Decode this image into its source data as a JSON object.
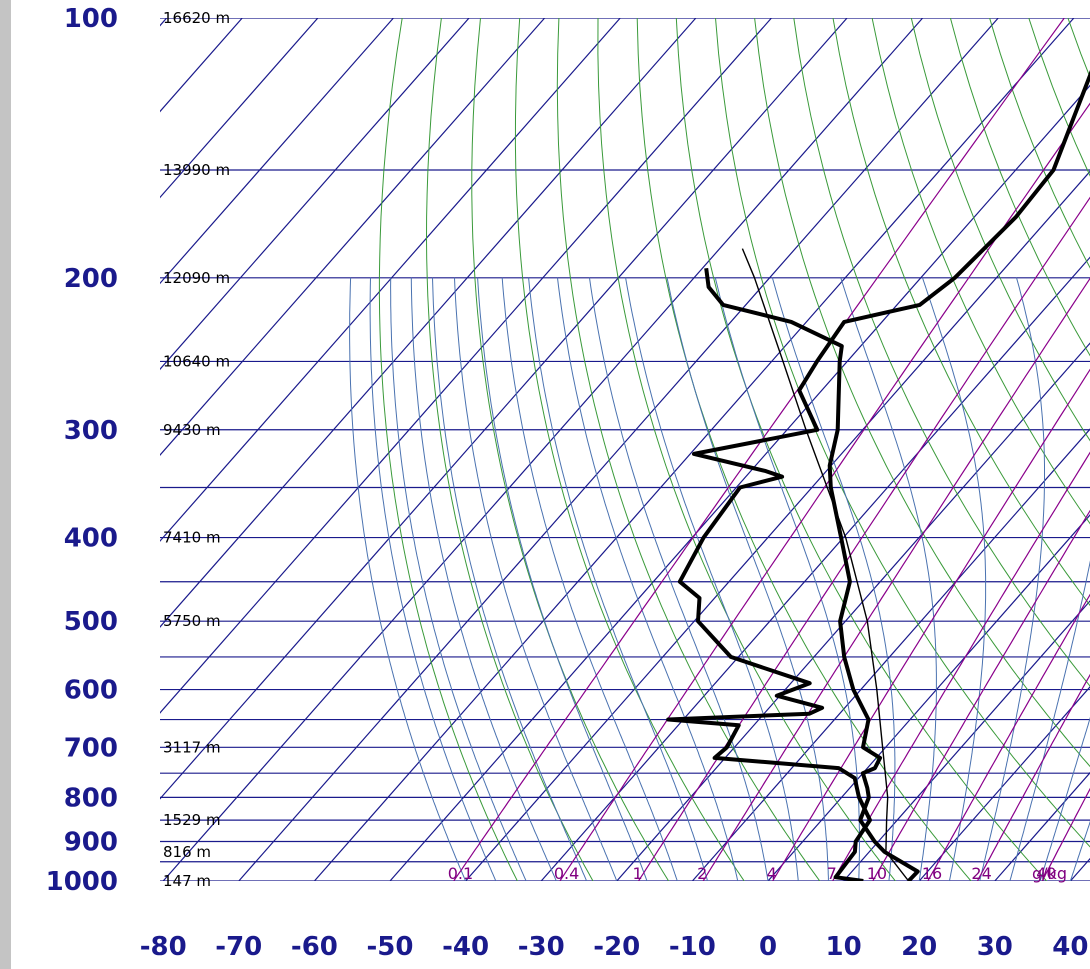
{
  "chart_data": {
    "type": "line",
    "title": "",
    "xlabel": "",
    "ylabel": "",
    "x_axis": {
      "unit": "°C",
      "ticks": [
        "-80",
        "-70",
        "-60",
        "-50",
        "-40",
        "-30",
        "-20",
        "-10",
        "0",
        "10",
        "20",
        "30",
        "40"
      ],
      "range": [
        -80,
        40
      ]
    },
    "y_axis": {
      "unit": "hPa",
      "scale": "log",
      "ticks": [
        "100",
        "200",
        "300",
        "400",
        "500",
        "600",
        "700",
        "800",
        "900",
        "1000"
      ],
      "range": [
        100,
        1000
      ]
    },
    "height_labels": [
      {
        "p": 100,
        "text": "16620 m"
      },
      {
        "p": 150,
        "text": "13990 m"
      },
      {
        "p": 200,
        "text": "12090 m"
      },
      {
        "p": 250,
        "text": "10640 m"
      },
      {
        "p": 300,
        "text": "9430 m"
      },
      {
        "p": 400,
        "text": "7410 m"
      },
      {
        "p": 500,
        "text": "5750 m"
      },
      {
        "p": 700,
        "text": "3117 m"
      },
      {
        "p": 850,
        "text": "1529 m"
      },
      {
        "p": 925,
        "text": "816 m"
      },
      {
        "p": 1000,
        "text": "147 m"
      }
    ],
    "mixing_ratio_labels": [
      "0.1",
      "0.4",
      "1",
      "2",
      "4",
      "7",
      "10",
      "16",
      "24",
      "40",
      "g/kg"
    ],
    "mixing_ratio_values": [
      0.1,
      0.4,
      1,
      2,
      4,
      7,
      10,
      16,
      24,
      40
    ],
    "series": [
      {
        "role": "temperature",
        "points": [
          {
            "p": 1000,
            "t": 18.6
          },
          {
            "p": 975,
            "t": 18.7
          },
          {
            "p": 925,
            "t": 12.0
          },
          {
            "p": 900,
            "t": 9.5
          },
          {
            "p": 850,
            "t": 5.1
          },
          {
            "p": 800,
            "t": 3.6
          },
          {
            "p": 780,
            "t": 2.3
          },
          {
            "p": 750,
            "t": 0.0
          },
          {
            "p": 740,
            "t": 1.0
          },
          {
            "p": 720,
            "t": 0.5
          },
          {
            "p": 700,
            "t": -3.0
          },
          {
            "p": 650,
            "t": -5.5
          },
          {
            "p": 600,
            "t": -11.0
          },
          {
            "p": 550,
            "t": -16.0
          },
          {
            "p": 500,
            "t": -20.7
          },
          {
            "p": 450,
            "t": -24.0
          },
          {
            "p": 400,
            "t": -30.3
          },
          {
            "p": 350,
            "t": -37.5
          },
          {
            "p": 330,
            "t": -40.2
          },
          {
            "p": 300,
            "t": -43.3
          },
          {
            "p": 250,
            "t": -51.0
          },
          {
            "p": 240,
            "t": -52.5
          },
          {
            "p": 225,
            "t": -62.0
          },
          {
            "p": 215,
            "t": -73.0
          },
          {
            "p": 205,
            "t": -77.0
          },
          {
            "p": 195,
            "t": -79.5
          }
        ]
      },
      {
        "role": "dewpoint",
        "points": [
          {
            "p": 1000,
            "t": 12.6
          },
          {
            "p": 990,
            "t": 8.5
          },
          {
            "p": 925,
            "t": 8.1
          },
          {
            "p": 900,
            "t": 7.0
          },
          {
            "p": 850,
            "t": 6.4
          },
          {
            "p": 800,
            "t": 2.3
          },
          {
            "p": 760,
            "t": -0.5
          },
          {
            "p": 740,
            "t": -3.8
          },
          {
            "p": 720,
            "t": -21.4
          },
          {
            "p": 700,
            "t": -21.0
          },
          {
            "p": 660,
            "t": -22.0
          },
          {
            "p": 650,
            "t": -32.0
          },
          {
            "p": 640,
            "t": -14.0
          },
          {
            "p": 630,
            "t": -13.0
          },
          {
            "p": 610,
            "t": -20.4
          },
          {
            "p": 590,
            "t": -17.5
          },
          {
            "p": 550,
            "t": -31.0
          },
          {
            "p": 500,
            "t": -39.5
          },
          {
            "p": 470,
            "t": -42.0
          },
          {
            "p": 450,
            "t": -46.5
          },
          {
            "p": 400,
            "t": -48.5
          },
          {
            "p": 350,
            "t": -49.5
          },
          {
            "p": 340,
            "t": -45.2
          },
          {
            "p": 335,
            "t": -48.0
          },
          {
            "p": 320,
            "t": -59.5
          },
          {
            "p": 300,
            "t": -46.0
          },
          {
            "p": 270,
            "t": -53.0
          },
          {
            "p": 250,
            "t": -54.0
          },
          {
            "p": 225,
            "t": -55.0
          },
          {
            "p": 215,
            "t": -47.0
          },
          {
            "p": 200,
            "t": -45.5
          },
          {
            "p": 170,
            "t": -44.5
          },
          {
            "p": 150,
            "t": -45.0
          },
          {
            "p": 130,
            "t": -48.5
          },
          {
            "p": 115,
            "t": -51.5
          },
          {
            "p": 100,
            "t": -49.5
          }
        ]
      },
      {
        "role": "parcel",
        "points": [
          {
            "p": 1000,
            "t": 18.6
          },
          {
            "p": 925,
            "t": 12.2
          },
          {
            "p": 850,
            "t": 8.6
          },
          {
            "p": 800,
            "t": 6.1
          },
          {
            "p": 700,
            "t": -0.4
          },
          {
            "p": 600,
            "t": -7.9
          },
          {
            "p": 500,
            "t": -17.1
          },
          {
            "p": 400,
            "t": -29.7
          },
          {
            "p": 300,
            "t": -47.5
          },
          {
            "p": 250,
            "t": -58.5
          },
          {
            "p": 200,
            "t": -72.0
          },
          {
            "p": 185,
            "t": -77.0
          }
        ]
      }
    ],
    "grid": true,
    "colors": {
      "isotherm": "#1a1a8c",
      "isobar": "#1a1a8c",
      "dry_adiabat": "#3a9a3a",
      "moist_adiabat": "#4a72b0",
      "mixing_ratio": "#8b008b",
      "sounding": "#000000",
      "parcel": "#000000",
      "axis_labels": "#1a1a8c",
      "mixing_labels": "#800080"
    }
  }
}
